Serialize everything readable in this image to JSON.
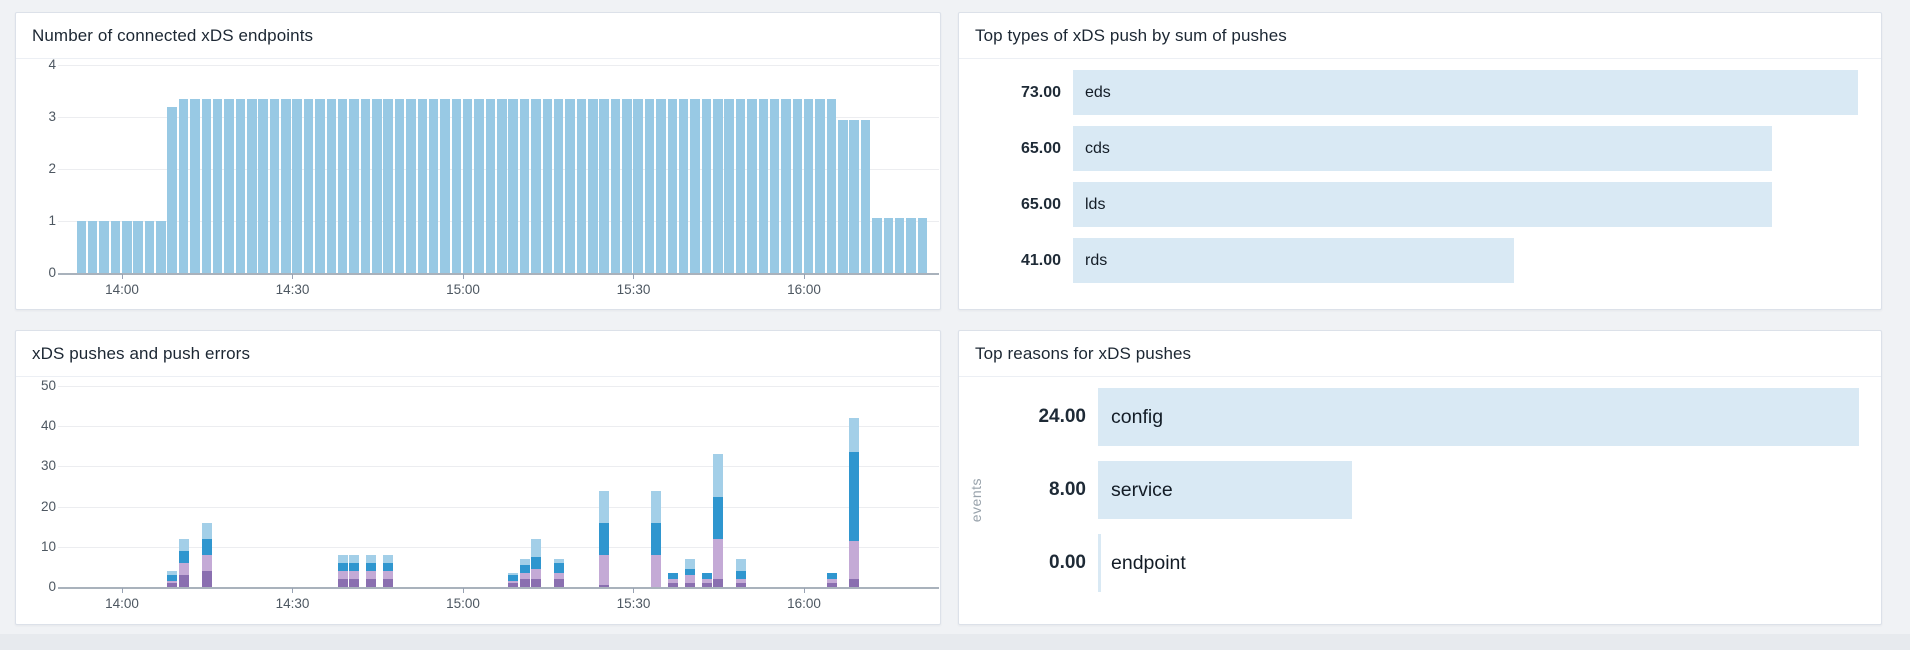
{
  "colors": {
    "background": "#f0f2f5",
    "panel_border": "#dce1e9",
    "title_text": "#1c2733",
    "axis_text": "#4d5761",
    "grid_line": "#ecedf0",
    "axis_line": "#a9b2bc",
    "endpoints_bar": "#98c9e4",
    "hbar_fill": "#d9e9f4",
    "stack_segment_colors": [
      "#8a6fb0",
      "#c4aad6",
      "#2f96cf",
      "#a3cfe8"
    ]
  },
  "panels": {
    "endpoints": {
      "title": "Number of connected xDS endpoints"
    },
    "push_types": {
      "title": "Top types of xDS push by sum of pushes",
      "max_value": 73,
      "rows": [
        {
          "value_label": "73.00",
          "label": "eds",
          "value": 73
        },
        {
          "value_label": "65.00",
          "label": "cds",
          "value": 65
        },
        {
          "value_label": "65.00",
          "label": "lds",
          "value": 65
        },
        {
          "value_label": "41.00",
          "label": "rds",
          "value": 41
        }
      ]
    },
    "pushes": {
      "title": "xDS pushes and push errors"
    },
    "push_reasons": {
      "title": "Top reasons for xDS pushes",
      "axis_label": "events",
      "max_value": 24,
      "rows": [
        {
          "value_label": "24.00",
          "label": "config",
          "value": 24
        },
        {
          "value_label": "8.00",
          "label": "service",
          "value": 8
        },
        {
          "value_label": "0.00",
          "label": "endpoint",
          "value": 0
        }
      ]
    }
  },
  "chart_data": [
    {
      "id": "endpoints",
      "type": "bar",
      "title": "Number of connected xDS endpoints",
      "x_start_time": "13:52",
      "x_step_minutes": 2,
      "x_tick_labels": [
        "14:00",
        "14:30",
        "15:00",
        "15:30",
        "16:00"
      ],
      "y_tick_labels": [
        "0",
        "1",
        "2",
        "3",
        "4"
      ],
      "ylim": [
        0,
        4
      ],
      "grid": true,
      "legend": "none",
      "values": [
        1,
        1,
        1,
        1,
        1,
        1,
        1,
        1,
        3.2,
        3.35,
        3.35,
        3.35,
        3.35,
        3.35,
        3.35,
        3.35,
        3.35,
        3.35,
        3.35,
        3.35,
        3.35,
        3.35,
        3.35,
        3.35,
        3.35,
        3.35,
        3.35,
        3.35,
        3.35,
        3.35,
        3.35,
        3.35,
        3.35,
        3.35,
        3.35,
        3.35,
        3.35,
        3.35,
        3.35,
        3.35,
        3.35,
        3.35,
        3.35,
        3.35,
        3.35,
        3.35,
        3.35,
        3.35,
        3.35,
        3.35,
        3.35,
        3.35,
        3.35,
        3.35,
        3.35,
        3.35,
        3.35,
        3.35,
        3.35,
        3.35,
        3.35,
        3.35,
        3.35,
        3.35,
        3.35,
        3.35,
        3.35,
        2.95,
        2.95,
        2.95,
        1.05,
        1.05,
        1.05,
        1.05,
        1.05
      ]
    },
    {
      "id": "push_types",
      "type": "hbar",
      "title": "Top types of xDS push by sum of pushes",
      "categories": [
        "eds",
        "cds",
        "lds",
        "rds"
      ],
      "values": [
        73,
        65,
        65,
        41
      ],
      "value_labels": [
        "73.00",
        "65.00",
        "65.00",
        "41.00"
      ],
      "xlim": [
        0,
        73
      ],
      "legend": "none"
    },
    {
      "id": "pushes",
      "type": "stacked_bar",
      "title": "xDS pushes and push errors",
      "x_tick_labels": [
        "14:00",
        "14:30",
        "15:00",
        "15:30",
        "16:00"
      ],
      "y_tick_labels": [
        "0",
        "10",
        "20",
        "30",
        "40",
        "50"
      ],
      "ylim": [
        0,
        50
      ],
      "grid": true,
      "legend": "none",
      "segment_order": "bottom-to-top",
      "segment_colors": [
        "#8a6fb0",
        "#c4aad6",
        "#2f96cf",
        "#a3cfe8"
      ],
      "bars": [
        {
          "time": "14:08",
          "segments": [
            1,
            0.5,
            1.5,
            1
          ]
        },
        {
          "time": "14:10",
          "segments": [
            3,
            3,
            3,
            3
          ]
        },
        {
          "time": "14:14",
          "segments": [
            4,
            4,
            4,
            4
          ]
        },
        {
          "time": "14:38",
          "segments": [
            2,
            2,
            2,
            2
          ]
        },
        {
          "time": "14:40",
          "segments": [
            2,
            2,
            2,
            2
          ]
        },
        {
          "time": "14:43",
          "segments": [
            2,
            2,
            2,
            2
          ]
        },
        {
          "time": "14:46",
          "segments": [
            2,
            2,
            2,
            2
          ]
        },
        {
          "time": "15:08",
          "segments": [
            1,
            0.5,
            1.5,
            0.5
          ]
        },
        {
          "time": "15:10",
          "segments": [
            2,
            1.5,
            2,
            1.5
          ]
        },
        {
          "time": "15:12",
          "segments": [
            2,
            2.5,
            3,
            4.5
          ]
        },
        {
          "time": "15:16",
          "segments": [
            2,
            1.5,
            2.5,
            1
          ]
        },
        {
          "time": "15:24",
          "segments": [
            0.5,
            7.5,
            8,
            8
          ]
        },
        {
          "time": "15:33",
          "segments": [
            0,
            8,
            8,
            8
          ]
        },
        {
          "time": "15:36",
          "segments": [
            1,
            1,
            1.5,
            0
          ]
        },
        {
          "time": "15:39",
          "segments": [
            1,
            2,
            1.5,
            2.5
          ]
        },
        {
          "time": "15:42",
          "segments": [
            1,
            1,
            1.5,
            0
          ]
        },
        {
          "time": "15:44",
          "segments": [
            2,
            10,
            10.5,
            10.5
          ]
        },
        {
          "time": "15:48",
          "segments": [
            1,
            1,
            2,
            3
          ]
        },
        {
          "time": "16:04",
          "segments": [
            1,
            1,
            1.5,
            0
          ]
        },
        {
          "time": "16:08",
          "segments": [
            2,
            9.5,
            22,
            8.5
          ]
        }
      ]
    },
    {
      "id": "push_reasons",
      "type": "hbar",
      "title": "Top reasons for xDS pushes",
      "ylabel": "events",
      "categories": [
        "config",
        "service",
        "endpoint"
      ],
      "values": [
        24,
        8,
        0
      ],
      "value_labels": [
        "24.00",
        "8.00",
        "0.00"
      ],
      "xlim": [
        0,
        24
      ],
      "legend": "none"
    }
  ]
}
